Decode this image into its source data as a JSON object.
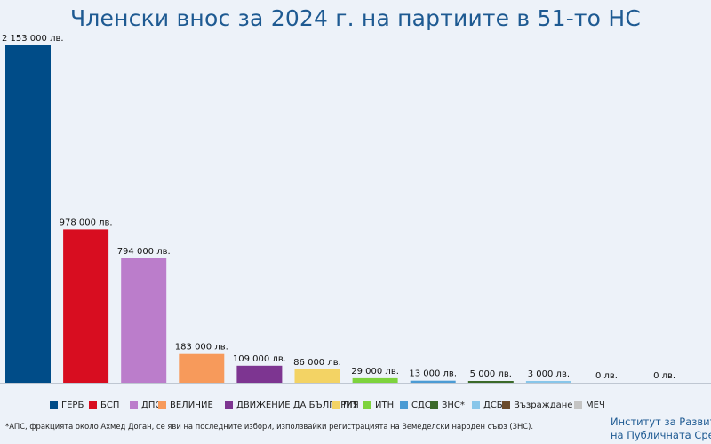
{
  "title": "Членски внос за 2024 г. на партиите в 51-то НС",
  "chart_data": {
    "type": "bar",
    "title": "Членски внос за 2024 г. на партиите в 51-то НС",
    "xlabel": "",
    "ylabel": "",
    "ylim": [
      0,
      2153000
    ],
    "grid": false,
    "legend_position": "bottom",
    "categories": [
      "ГЕРБ",
      "БСП",
      "ДПС",
      "ВЕЛИЧИЕ",
      "ДВИЖЕНИЕ ДА БЪЛГАРИЯ",
      "ПП",
      "ИТН",
      "СДС",
      "ЗНС*",
      "ДСБ",
      "Възраждане",
      "МЕЧ"
    ],
    "values": [
      2153000,
      978000,
      794000,
      183000,
      109000,
      86000,
      29000,
      13000,
      5000,
      3000,
      0,
      0
    ],
    "labels": [
      "2 153 000 лв.",
      "978 000 лв.",
      "794 000 лв.",
      "183 000 лв.",
      "109 000 лв.",
      "86 000 лв.",
      "29 000 лв.",
      "13 000 лв.",
      "5 000 лв.",
      "3 000 лв.",
      "0 лв.",
      "0 лв."
    ],
    "colors": [
      "#004c88",
      "#d80d20",
      "#bb7dcb",
      "#f79a5b",
      "#7d3591",
      "#f3d364",
      "#7dd33d",
      "#4b9bd4",
      "#3b6a2a",
      "#88c6ea",
      "#6b4a2a",
      "#c4c4c4"
    ]
  },
  "footnote": "*АПС, фракцията около Ахмед Доган, се яви на последните избори, използвайки регистрацията на Земеделски народен съюз (ЗНС).",
  "organization": {
    "line1": "Институт за Развитие",
    "line2": "на Публичната Среда"
  }
}
